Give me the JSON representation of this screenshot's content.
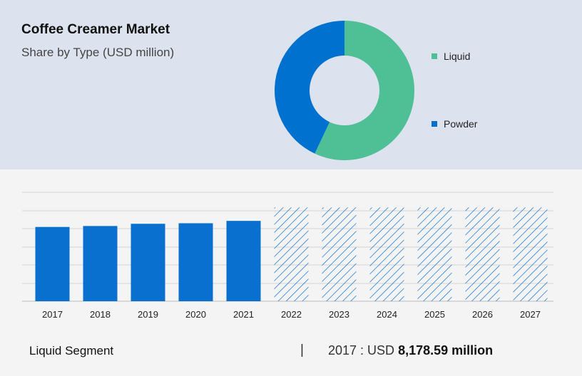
{
  "title": "Coffee Creamer Market",
  "subtitle": "Share by Type (USD million)",
  "colors": {
    "liquid": "#4fbf95",
    "powder": "#0071cf",
    "bar": "#0a70cf",
    "forecast_hatch": "#0a70cf"
  },
  "chart_data": [
    {
      "type": "pie",
      "subtype": "donut",
      "categories": [
        "Liquid",
        "Powder"
      ],
      "values": [
        57,
        43
      ],
      "legend_position": "right"
    },
    {
      "type": "bar",
      "categories": [
        "2017",
        "2018",
        "2019",
        "2020",
        "2021",
        "2022",
        "2023",
        "2024",
        "2025",
        "2026",
        "2027"
      ],
      "series": [
        {
          "values": [
            8178.59,
            8285,
            8530,
            8590,
            8850,
            10330,
            10330,
            10330,
            10330,
            10330,
            10330
          ]
        }
      ],
      "forecast_from": "2022",
      "forecast_style": "hatched",
      "ylim": [
        0,
        12000
      ],
      "grid": true,
      "y_tick_labels_visible": false
    }
  ],
  "footer": {
    "segment_label": "Liquid Segment",
    "separator": "|",
    "year_label": "2017 : USD",
    "amount": "8,178.59 million"
  }
}
